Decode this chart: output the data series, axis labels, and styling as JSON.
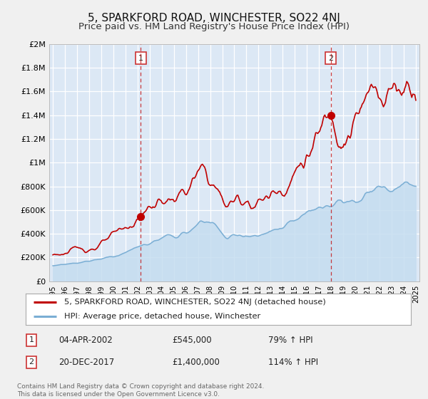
{
  "title": "5, SPARKFORD ROAD, WINCHESTER, SO22 4NJ",
  "subtitle": "Price paid vs. HM Land Registry's House Price Index (HPI)",
  "ylim": [
    0,
    2000000
  ],
  "yticks": [
    0,
    200000,
    400000,
    600000,
    800000,
    1000000,
    1200000,
    1400000,
    1600000,
    1800000,
    2000000
  ],
  "ytick_labels": [
    "£0",
    "£200K",
    "£400K",
    "£600K",
    "£800K",
    "£1M",
    "£1.2M",
    "£1.4M",
    "£1.6M",
    "£1.8M",
    "£2M"
  ],
  "xlim_start": 1994.7,
  "xlim_end": 2025.3,
  "xticks": [
    1995,
    1996,
    1997,
    1998,
    1999,
    2000,
    2001,
    2002,
    2003,
    2004,
    2005,
    2006,
    2007,
    2008,
    2009,
    2010,
    2011,
    2012,
    2013,
    2014,
    2015,
    2016,
    2017,
    2018,
    2019,
    2020,
    2021,
    2022,
    2023,
    2024,
    2025
  ],
  "background_color": "#dce8f5",
  "fig_bg_color": "#f0f0f0",
  "grid_color": "#ffffff",
  "red_line_color": "#c00000",
  "blue_line_color": "#7aaed4",
  "blue_fill_color": "#c5ddf0",
  "marker1_date": 2002.27,
  "marker1_value": 545000,
  "marker2_date": 2017.97,
  "marker2_value": 1400000,
  "vline1_x": 2002.27,
  "vline2_x": 2017.97,
  "legend_label_red": "5, SPARKFORD ROAD, WINCHESTER, SO22 4NJ (detached house)",
  "legend_label_blue": "HPI: Average price, detached house, Winchester",
  "annotation1_label": "1",
  "annotation1_date": "04-APR-2002",
  "annotation1_price": "£545,000",
  "annotation1_hpi": "79% ↑ HPI",
  "annotation2_label": "2",
  "annotation2_date": "20-DEC-2017",
  "annotation2_price": "£1,400,000",
  "annotation2_hpi": "114% ↑ HPI",
  "footer": "Contains HM Land Registry data © Crown copyright and database right 2024.\nThis data is licensed under the Open Government Licence v3.0."
}
